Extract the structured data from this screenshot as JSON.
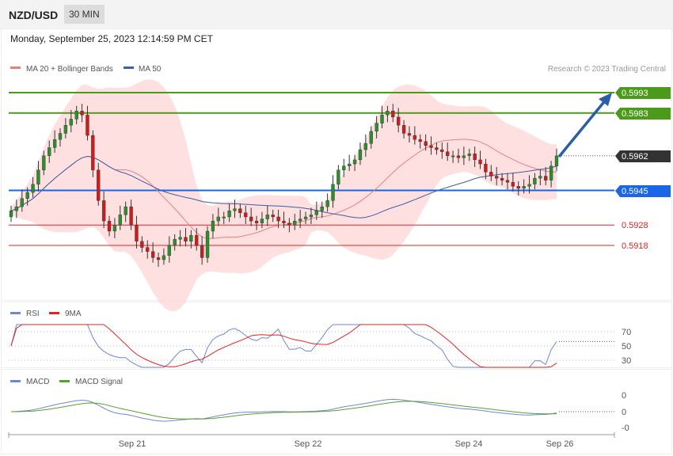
{
  "header": {
    "symbol": "NZD/USD",
    "timeframe": "30 MIN"
  },
  "datetime": "Monday, September 25, 2023 12:14:59 PM CET",
  "legend": {
    "ma20": "MA 20 + Bollinger Bands",
    "ma50": "MA 50",
    "credit": "Research © 2023 Trading Central"
  },
  "levels": [
    {
      "value": "0.5993",
      "kind": "resistance",
      "color": "#4c9a1a"
    },
    {
      "value": "0.5983",
      "kind": "resistance",
      "color": "#4c9a1a"
    },
    {
      "value": "0.5962",
      "kind": "last",
      "color": "#333333"
    },
    {
      "value": "0.5945",
      "kind": "pivot",
      "color": "#1a66e6"
    },
    {
      "value": "0.5928",
      "kind": "support",
      "color": "#e02424"
    },
    {
      "value": "0.5918",
      "kind": "support",
      "color": "#e02424"
    }
  ],
  "rsi_panel": {
    "legend": [
      "RSI",
      "9MA"
    ],
    "ticks": [
      "70",
      "50",
      "30"
    ]
  },
  "macd_panel": {
    "legend": [
      "MACD",
      "MACD Signal"
    ],
    "ticks": [
      "0",
      "0",
      "-0"
    ]
  },
  "x_axis": [
    "Sep 21",
    "Sep 22",
    "Sep 24",
    "Sep 26"
  ],
  "colors": {
    "up": "#2e8b2e",
    "down": "#c81e1e",
    "bands": "#ffd6d6",
    "ma20": "#e88080",
    "ma50": "#3b5ea8",
    "rsi": "#6f86d6",
    "rsi_ma": "#e02424",
    "macd": "#6f86d6",
    "signal": "#5aa02c",
    "arrow": "#2b5ea8"
  },
  "chart_data": {
    "type": "candlestick",
    "y_range": [
      0.5895,
      0.6005
    ],
    "closes": [
      0.5935,
      0.5937,
      0.5941,
      0.5944,
      0.5948,
      0.5955,
      0.5962,
      0.5966,
      0.597,
      0.5973,
      0.5977,
      0.598,
      0.5984,
      0.5982,
      0.5972,
      0.5955,
      0.594,
      0.593,
      0.5925,
      0.5928,
      0.5933,
      0.5937,
      0.5928,
      0.592,
      0.5917,
      0.5915,
      0.5912,
      0.5911,
      0.5913,
      0.5918,
      0.5921,
      0.5922,
      0.592,
      0.5923,
      0.5918,
      0.5912,
      0.5925,
      0.593,
      0.5932,
      0.5932,
      0.5935,
      0.5936,
      0.5934,
      0.5932,
      0.593,
      0.5929,
      0.5931,
      0.5933,
      0.5932,
      0.593,
      0.5929,
      0.5928,
      0.593,
      0.5931,
      0.5932,
      0.5933,
      0.5935,
      0.5937,
      0.594,
      0.5948,
      0.5955,
      0.5957,
      0.5958,
      0.596,
      0.5965,
      0.5968,
      0.5974,
      0.5978,
      0.5982,
      0.5984,
      0.5981,
      0.5977,
      0.5973,
      0.5972,
      0.597,
      0.5969,
      0.5967,
      0.5966,
      0.5965,
      0.5964,
      0.5962,
      0.5962,
      0.5961,
      0.5962,
      0.5963,
      0.596,
      0.5958,
      0.5954,
      0.5952,
      0.5951,
      0.595,
      0.5949,
      0.5947,
      0.5946,
      0.5947,
      0.5948,
      0.5951,
      0.5952,
      0.595,
      0.5957,
      0.5962
    ],
    "ma20": "moving average 20 with Bollinger Bands",
    "ma50": "moving average 50",
    "rsi_levels": [
      70,
      50,
      30
    ],
    "last": 0.5962
  }
}
